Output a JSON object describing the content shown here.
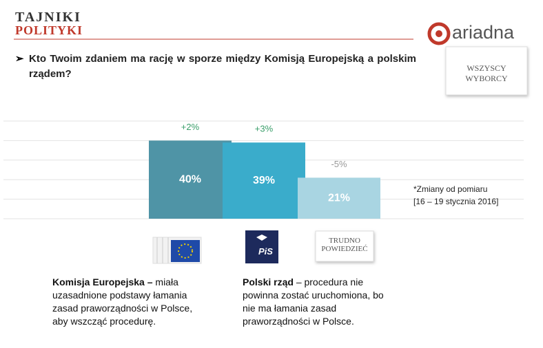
{
  "header": {
    "brand_top": "TAJNIKI",
    "brand_bottom": "POLITYKI",
    "logo": "ariadna"
  },
  "question": "Kto Twoim zdaniem ma rację w sporze między Komisją Europejską a polskim rządem?",
  "segment": "WSZYSCY WYBORCY",
  "chart_data": {
    "type": "bar",
    "categories": [
      null,
      "PiS",
      "TRUDNO POWIEDZIEĆ"
    ],
    "values": [
      40,
      39,
      21
    ],
    "value_labels": [
      "40%",
      "39%",
      "21%"
    ],
    "colors": [
      "#4f94a6",
      "#3aaccb",
      "#a9d5e2"
    ],
    "changes": [
      2,
      3,
      -5
    ],
    "change_labels": [
      "+2%",
      "+3%",
      "-5%"
    ],
    "ylim": [
      0,
      50
    ],
    "yticks": [
      0,
      10,
      20,
      30,
      40,
      50
    ],
    "grid": true,
    "note": [
      "*Zmiany od pomiaru",
      "[16 – 19 stycznia 2016]"
    ]
  },
  "descriptions": [
    {
      "bold": "Komisja Europejska –",
      "text": "miała uzasadnione podstawy łamania zasad praworządności w Polsce, aby wszcząć procedurę."
    },
    {
      "bold": "Polski rząd",
      "text": "– procedura nie powinna zostać uruchomiona, bo nie ma łamania zasad praworządności w Polsce."
    }
  ]
}
